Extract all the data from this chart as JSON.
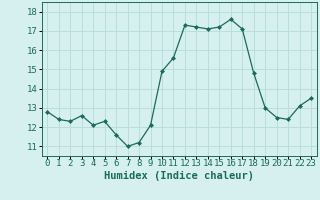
{
  "x": [
    0,
    1,
    2,
    3,
    4,
    5,
    6,
    7,
    8,
    9,
    10,
    11,
    12,
    13,
    14,
    15,
    16,
    17,
    18,
    19,
    20,
    21,
    22,
    23
  ],
  "y": [
    12.8,
    12.4,
    12.3,
    12.6,
    12.1,
    12.3,
    11.6,
    11.0,
    11.2,
    12.1,
    14.9,
    15.6,
    17.3,
    17.2,
    17.1,
    17.2,
    17.6,
    17.1,
    14.8,
    13.0,
    12.5,
    12.4,
    13.1,
    13.5
  ],
  "line_color": "#1a6b5a",
  "marker": "D",
  "marker_size": 2.0,
  "bg_color": "#d6f0f0",
  "grid_color": "#b8dede",
  "xlabel": "Humidex (Indice chaleur)",
  "xlabel_fontsize": 7.5,
  "tick_fontsize": 6.5,
  "ylim": [
    10.5,
    18.5
  ],
  "xlim": [
    -0.5,
    23.5
  ],
  "yticks": [
    11,
    12,
    13,
    14,
    15,
    16,
    17,
    18
  ],
  "xticks": [
    0,
    1,
    2,
    3,
    4,
    5,
    6,
    7,
    8,
    9,
    10,
    11,
    12,
    13,
    14,
    15,
    16,
    17,
    18,
    19,
    20,
    21,
    22,
    23
  ]
}
